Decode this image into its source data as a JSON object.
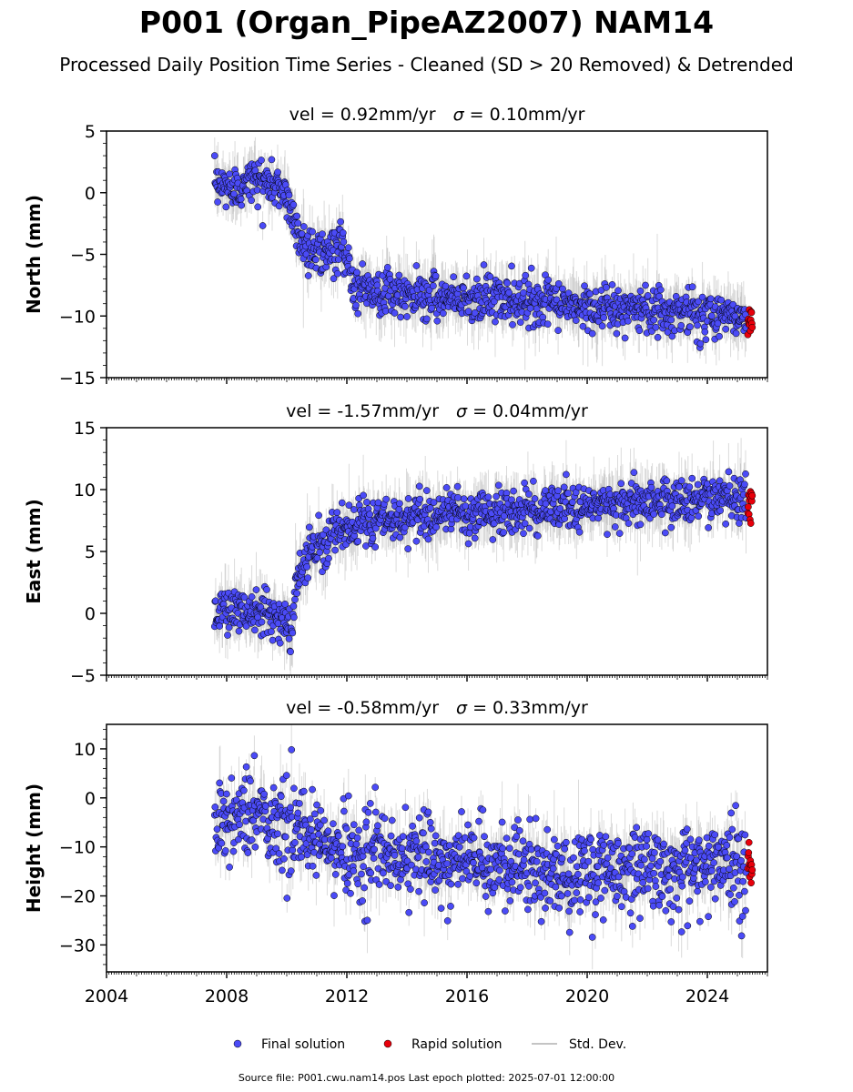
{
  "title": "P001 (Organ_PipeAZ2007) NAM14",
  "subtitle": "Processed Daily Position Time Series - Cleaned (SD > 20 Removed) & Detrended",
  "footer": "Source file: P001.cwu.nam14.pos  Last epoch plotted: 2025-07-01 12:00:00",
  "colors": {
    "final": "#4b4bf7",
    "rapid": "#e8000b",
    "stddev": "#b0b0b0",
    "edge": "#000000"
  },
  "legend": [
    {
      "key": "final",
      "label": "Final solution",
      "marker": "dot"
    },
    {
      "key": "rapid",
      "label": "Rapid solution",
      "marker": "dot"
    },
    {
      "key": "stddev",
      "label": "Std. Dev.",
      "marker": "line"
    }
  ],
  "chart_data": [
    {
      "type": "scatter",
      "title_vel": "vel = 0.92mm/yr",
      "title_sigma": "= 0.10mm/yr",
      "ylabel": "North (mm)",
      "xlim": [
        2004.0,
        2026.0
      ],
      "ylim": [
        -15,
        5
      ],
      "yticks": [
        5,
        0,
        -5,
        -10,
        -15
      ],
      "yticklabels": [
        "5",
        "0",
        "−5",
        "−10",
        "−15"
      ],
      "xtick_labels_shown": false,
      "series": [
        {
          "key": "final",
          "name": "Final solution",
          "x_range": [
            2007.6,
            2025.3
          ],
          "trend": [
            [
              2007.6,
              0.5
            ],
            [
              2008.3,
              0.5
            ],
            [
              2009.0,
              1.2
            ],
            [
              2010.0,
              0.0
            ],
            [
              2010.3,
              -3.0
            ],
            [
              2010.7,
              -4.5
            ],
            [
              2011.3,
              -5.0
            ],
            [
              2011.8,
              -4.5
            ],
            [
              2012.0,
              -5.5
            ],
            [
              2012.3,
              -7.5
            ],
            [
              2013.0,
              -8.0
            ],
            [
              2014.0,
              -8.5
            ],
            [
              2015.0,
              -8.3
            ],
            [
              2016.0,
              -8.5
            ],
            [
              2017.0,
              -8.6
            ],
            [
              2018.0,
              -8.7
            ],
            [
              2019.0,
              -9.0
            ],
            [
              2020.0,
              -9.3
            ],
            [
              2021.0,
              -9.5
            ],
            [
              2022.0,
              -9.5
            ],
            [
              2023.0,
              -9.6
            ],
            [
              2024.0,
              -9.8
            ],
            [
              2025.3,
              -10.0
            ]
          ],
          "noise_sd": 0.9
        },
        {
          "key": "rapid",
          "name": "Rapid solution",
          "x_range": [
            2025.35,
            2025.5
          ],
          "trend": [
            [
              2025.35,
              -10.3
            ],
            [
              2025.5,
              -10.3
            ]
          ],
          "noise_sd": 0.5
        }
      ]
    },
    {
      "type": "scatter",
      "title_vel": "vel = -1.57mm/yr",
      "title_sigma": "= 0.04mm/yr",
      "ylabel": "East (mm)",
      "xlim": [
        2004.0,
        2026.0
      ],
      "ylim": [
        -5,
        15
      ],
      "yticks": [
        15,
        10,
        5,
        0,
        -5
      ],
      "yticklabels": [
        "15",
        "10",
        "5",
        "0",
        "−5"
      ],
      "xtick_labels_shown": false,
      "series": [
        {
          "key": "final",
          "name": "Final solution",
          "x_range": [
            2007.6,
            2025.3
          ],
          "trend": [
            [
              2007.6,
              0.0
            ],
            [
              2009.0,
              0.5
            ],
            [
              2009.9,
              -0.5
            ],
            [
              2010.2,
              -1.5
            ],
            [
              2010.3,
              2.5
            ],
            [
              2010.6,
              4.5
            ],
            [
              2011.0,
              5.5
            ],
            [
              2012.0,
              7.0
            ],
            [
              2013.0,
              7.5
            ],
            [
              2014.0,
              7.8
            ],
            [
              2015.0,
              8.0
            ],
            [
              2016.0,
              8.0
            ],
            [
              2017.0,
              8.2
            ],
            [
              2018.0,
              8.4
            ],
            [
              2019.0,
              8.6
            ],
            [
              2020.0,
              8.7
            ],
            [
              2021.0,
              8.8
            ],
            [
              2022.0,
              9.0
            ],
            [
              2023.0,
              9.2
            ],
            [
              2024.0,
              9.3
            ],
            [
              2025.3,
              9.3
            ]
          ],
          "noise_sd": 0.9
        },
        {
          "key": "rapid",
          "name": "Rapid solution",
          "x_range": [
            2025.35,
            2025.5
          ],
          "trend": [
            [
              2025.35,
              9.0
            ],
            [
              2025.5,
              9.0
            ]
          ],
          "noise_sd": 0.8
        }
      ]
    },
    {
      "type": "scatter",
      "title_vel": "vel = -0.58mm/yr",
      "title_sigma": "= 0.33mm/yr",
      "ylabel": "Height (mm)",
      "xlim": [
        2004.0,
        2026.0
      ],
      "ylim": [
        -35.5,
        15
      ],
      "yticks": [
        10,
        0,
        -10,
        -20,
        -30
      ],
      "yticklabels": [
        "10",
        "0",
        "−10",
        "−20",
        "−30"
      ],
      "xtick_labels_shown": true,
      "xticks": [
        2004,
        2008,
        2012,
        2016,
        2020,
        2024
      ],
      "xticklabels": [
        "2004",
        "2008",
        "2012",
        "2016",
        "2020",
        "2024"
      ],
      "series": [
        {
          "key": "final",
          "name": "Final solution",
          "x_range": [
            2007.6,
            2025.3
          ],
          "trend": [
            [
              2007.6,
              -4.0
            ],
            [
              2009.0,
              -3.0
            ],
            [
              2010.0,
              -6.0
            ],
            [
              2011.0,
              -9.0
            ],
            [
              2012.0,
              -11.0
            ],
            [
              2014.0,
              -12.0
            ],
            [
              2016.0,
              -13.0
            ],
            [
              2018.0,
              -14.0
            ],
            [
              2019.0,
              -17.0
            ],
            [
              2020.0,
              -15.0
            ],
            [
              2022.0,
              -14.0
            ],
            [
              2024.0,
              -14.0
            ],
            [
              2025.3,
              -13.0
            ]
          ],
          "noise_sd": 4.5
        },
        {
          "key": "rapid",
          "name": "Rapid solution",
          "x_range": [
            2025.35,
            2025.5
          ],
          "trend": [
            [
              2025.35,
              -14.0
            ],
            [
              2025.5,
              -14.0
            ]
          ],
          "noise_sd": 2.5
        }
      ]
    }
  ]
}
